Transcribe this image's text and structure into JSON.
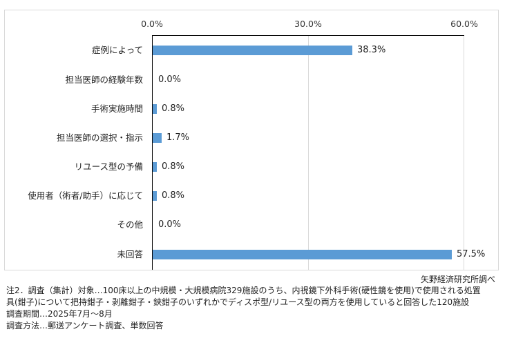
{
  "chart_data": {
    "type": "bar",
    "orientation": "horizontal",
    "title": "",
    "xlabel": "",
    "ylabel": "",
    "xlim": [
      0,
      60
    ],
    "x_ticks": [
      "0.0%",
      "30.0%",
      "60.0%"
    ],
    "grid": true,
    "legend": null,
    "bar_color": "#5B9BD5",
    "categories": [
      "症例によって",
      "担当医師の経験年数",
      "手術実施時間",
      "担当医師の選択・指示",
      "リユース型の予備",
      "使用者（術者/助手）に応じて",
      "その他",
      "未回答"
    ],
    "values": [
      38.3,
      0.0,
      0.8,
      1.7,
      0.8,
      0.8,
      0.0,
      57.5
    ],
    "value_labels": [
      "38.3%",
      "0.0%",
      "0.8%",
      "1.7%",
      "0.8%",
      "0.8%",
      "0.0%",
      "57.5%"
    ]
  },
  "source": "矢野経済研究所調べ",
  "notes": [
    "注2．調査（集計）対象…100床以上の中規模・大規模病院329施設のうち、内視鏡下外科手術(硬性鏡を使用)で使用される処置",
    "具(鉗子)について把持鉗子・剥離鉗子・鋏鉗子のいずれかでディスポ型/リユース型の両方を使用していると回答した120施設",
    "調査期間…2025年7月～8月",
    "調査方法…郵送アンケート調査、単数回答"
  ]
}
